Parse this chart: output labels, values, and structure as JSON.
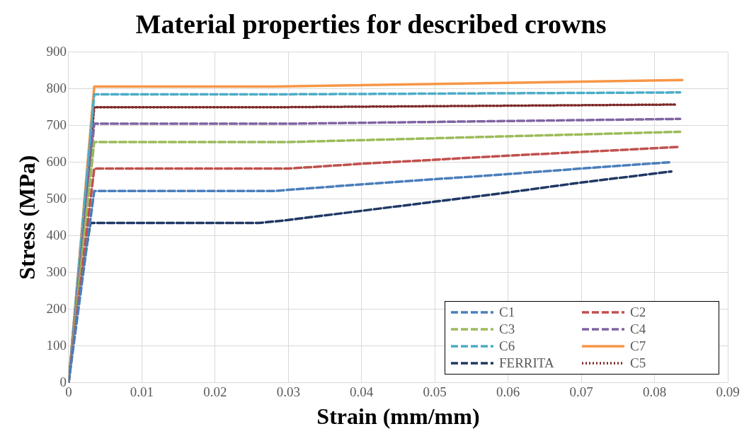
{
  "chart_data": {
    "type": "line",
    "title": "Material properties for described crowns",
    "xlabel": "Strain (mm/mm)",
    "ylabel": "Stress (MPa)",
    "xlim": [
      0,
      0.09
    ],
    "xticks": [
      0,
      0.01,
      0.02,
      0.03,
      0.04,
      0.05,
      0.06,
      0.07,
      0.08,
      0.09
    ],
    "ylim": [
      0,
      900
    ],
    "yticks": [
      0,
      100,
      200,
      300,
      400,
      500,
      600,
      700,
      800,
      900
    ],
    "grid": true,
    "legend": "bottom right",
    "marker": "none",
    "series": [
      {
        "name": "C1",
        "color": "#4a7ebb",
        "line_style": "dashed",
        "x": [
          0,
          0.0035,
          0.028,
          0.04,
          0.05,
          0.06,
          0.07,
          0.082
        ],
        "values": [
          0,
          522,
          522,
          540,
          554,
          568,
          583,
          600
        ]
      },
      {
        "name": "C2",
        "color": "#c0504d",
        "line_style": "dashed",
        "x": [
          0,
          0.0035,
          0.03,
          0.04,
          0.05,
          0.06,
          0.07,
          0.0835
        ],
        "values": [
          0,
          583,
          583,
          596,
          607,
          618,
          628,
          642
        ]
      },
      {
        "name": "C3",
        "color": "#9bbb59",
        "line_style": "dashed",
        "x": [
          0,
          0.0035,
          0.03,
          0.0835
        ],
        "values": [
          0,
          655,
          655,
          683
        ]
      },
      {
        "name": "C4",
        "color": "#8064a2",
        "line_style": "dashed",
        "x": [
          0,
          0.0035,
          0.03,
          0.0835
        ],
        "values": [
          0,
          705,
          705,
          718
        ]
      },
      {
        "name": "C6",
        "color": "#4bacc6",
        "line_style": "dashed",
        "x": [
          0,
          0.0035,
          0.03,
          0.0835
        ],
        "values": [
          0,
          785,
          785,
          790
        ]
      },
      {
        "name": "C7",
        "color": "#f79646",
        "line_style": "solid",
        "x": [
          0,
          0.0035,
          0.028,
          0.0838
        ],
        "values": [
          0,
          806,
          806,
          824
        ]
      },
      {
        "name": "FERRITA",
        "color": "#1f3864",
        "line_style": "dashed",
        "x": [
          0,
          0.0015,
          0.003,
          0.026,
          0.03,
          0.04,
          0.05,
          0.06,
          0.07,
          0.0823
        ],
        "values": [
          0,
          260,
          435,
          435,
          443,
          468,
          493,
          518,
          545,
          575
        ]
      },
      {
        "name": "C5",
        "color": "#7f2a2a",
        "line_style": "dotted",
        "x": [
          0,
          0.0035,
          0.03,
          0.083
        ],
        "values": [
          0,
          750,
          750,
          757
        ]
      }
    ]
  }
}
